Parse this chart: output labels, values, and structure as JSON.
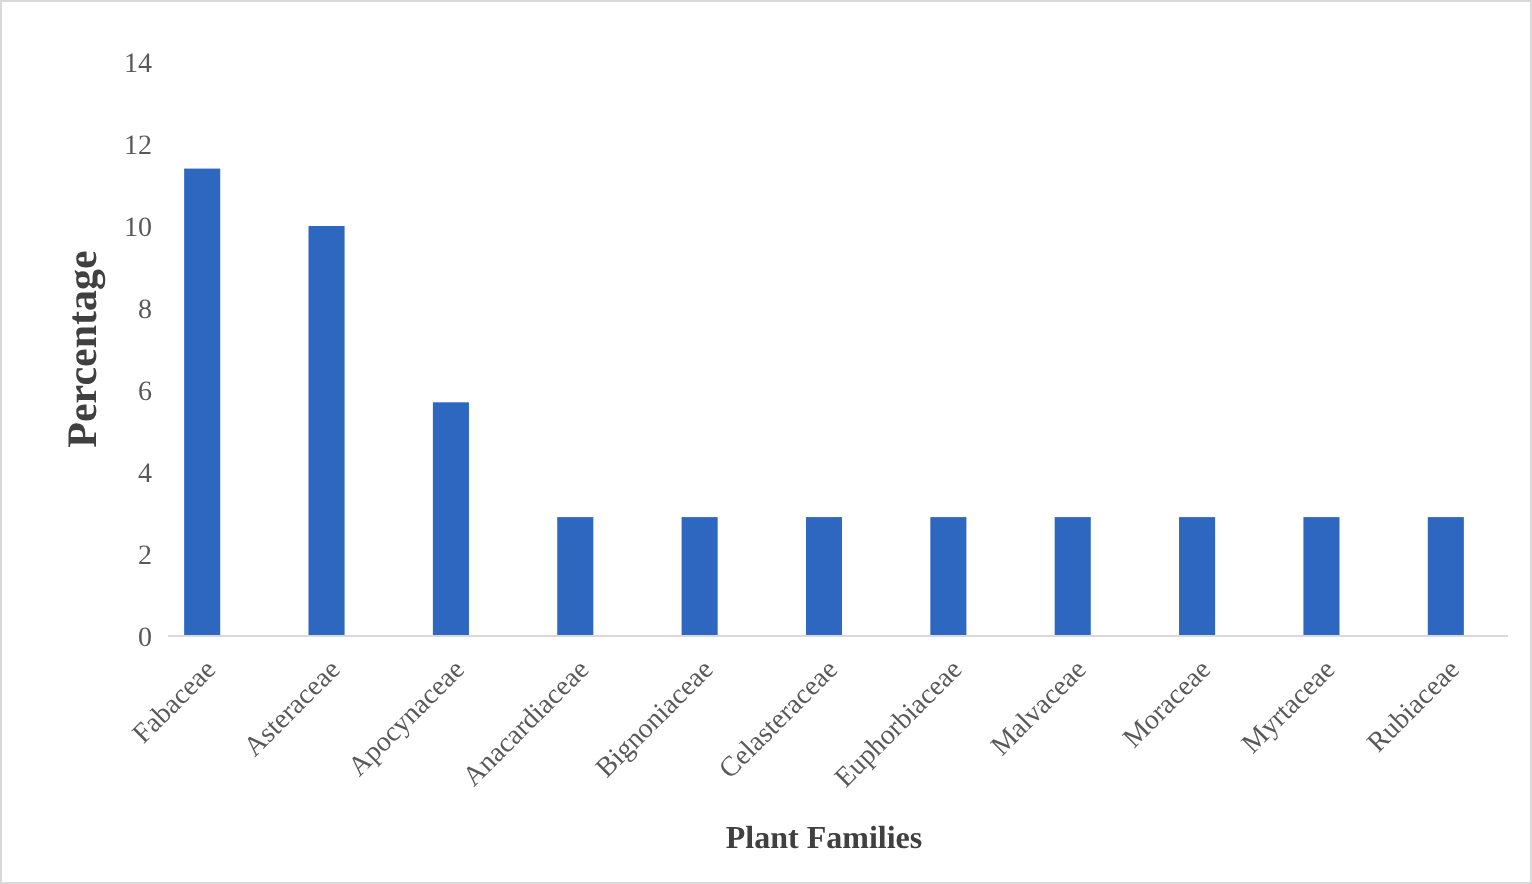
{
  "chart_data": {
    "type": "bar",
    "xlabel": "Plant Families",
    "ylabel": "Percentage",
    "categories": [
      "Fabaceae",
      "Asteraceae",
      "Apocynaceae",
      "Anacardiaceae",
      "Bignoniaceae",
      "Celasteraceae",
      "Euphorbiaceae",
      "Malvaceae",
      "Moraceae",
      "Myrtaceae",
      "Rubiaceae"
    ],
    "values": [
      11.4,
      10.0,
      5.7,
      2.9,
      2.9,
      2.9,
      2.9,
      2.9,
      2.9,
      2.9,
      2.9
    ],
    "color": "#2e67c0",
    "ylim": [
      0,
      14
    ],
    "yticks": [
      0,
      2,
      4,
      6,
      8,
      10,
      12,
      14
    ],
    "grid": false
  }
}
